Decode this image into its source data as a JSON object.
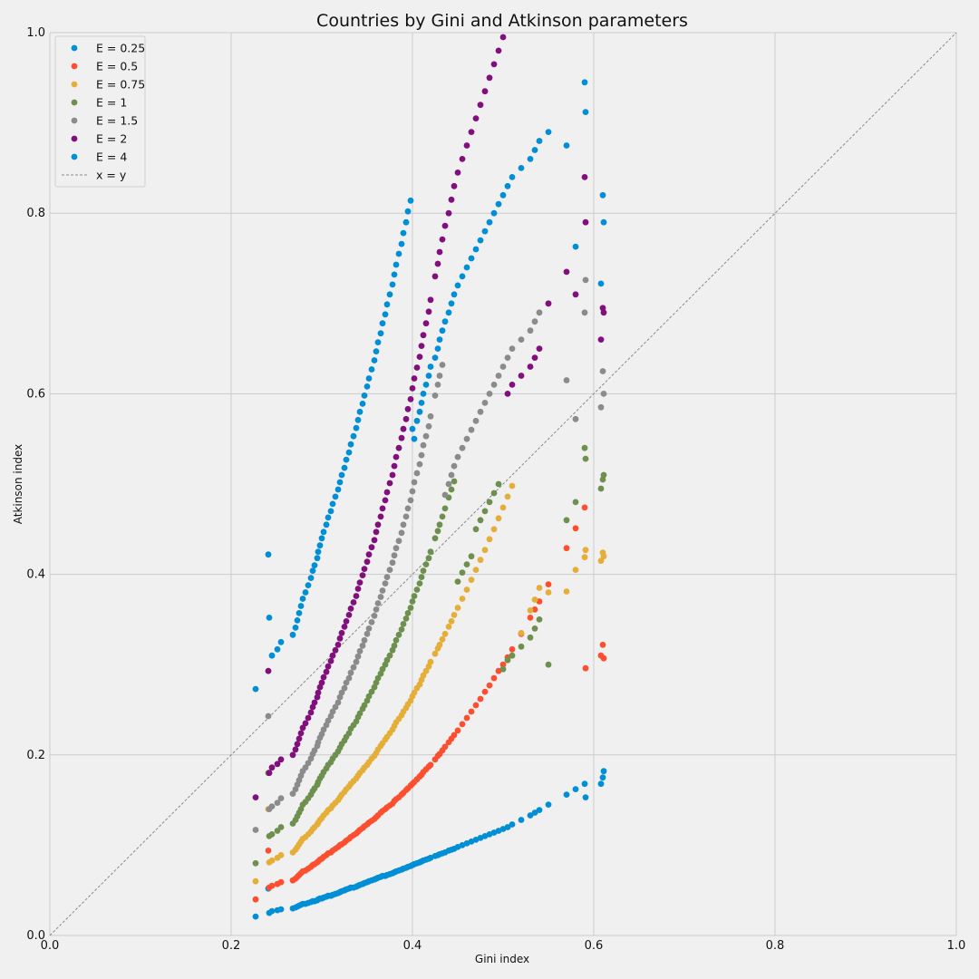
{
  "chart_data": {
    "type": "scatter",
    "title": "Countries by Gini and Atkinson parameters",
    "xlabel": "Gini index",
    "ylabel": "Atkinson index",
    "xlim": [
      0.0,
      1.0
    ],
    "ylim": [
      0.0,
      1.0
    ],
    "xticks": [
      "0.0",
      "0.2",
      "0.4",
      "0.6",
      "0.8",
      "1.0"
    ],
    "yticks": [
      "0.0",
      "0.2",
      "0.4",
      "0.6",
      "0.8",
      "1.0"
    ],
    "grid": true,
    "legend_position": "top-left",
    "reference_line": {
      "name": "x = y",
      "color": "#8a8a8a",
      "style": "dashed"
    },
    "series": [
      {
        "name": "E = 0.25",
        "color": "#008fd5",
        "exponent": 0.25
      },
      {
        "name": "E = 0.5",
        "color": "#fc4f30",
        "exponent": 0.5
      },
      {
        "name": "E = 0.75",
        "color": "#e5ae38",
        "exponent": 0.75
      },
      {
        "name": "E = 1",
        "color": "#6d904f",
        "exponent": 1
      },
      {
        "name": "E = 1.5",
        "color": "#8b8b8b",
        "exponent": 1.5
      },
      {
        "name": "E = 2",
        "color": "#810f7c",
        "exponent": 2
      },
      {
        "name": "E = 4",
        "color": "#008fd5",
        "exponent": 4
      }
    ],
    "gini_values": [
      0.227,
      0.242,
      0.241,
      0.245,
      0.251,
      0.255,
      0.268,
      0.271,
      0.273,
      0.275,
      0.277,
      0.279,
      0.282,
      0.285,
      0.288,
      0.29,
      0.292,
      0.295,
      0.296,
      0.298,
      0.3,
      0.302,
      0.305,
      0.307,
      0.31,
      0.312,
      0.315,
      0.318,
      0.32,
      0.322,
      0.325,
      0.327,
      0.33,
      0.332,
      0.335,
      0.338,
      0.34,
      0.342,
      0.345,
      0.347,
      0.35,
      0.352,
      0.355,
      0.358,
      0.36,
      0.362,
      0.365,
      0.367,
      0.37,
      0.372,
      0.375,
      0.378,
      0.38,
      0.382,
      0.385,
      0.388,
      0.39,
      0.393,
      0.395,
      0.398,
      0.4,
      0.402,
      0.405,
      0.408,
      0.41,
      0.412,
      0.415,
      0.418,
      0.42,
      0.425,
      0.428,
      0.43,
      0.433,
      0.436,
      0.44,
      0.443,
      0.446,
      0.45,
      0.455,
      0.46,
      0.465,
      0.47,
      0.475,
      0.48,
      0.485,
      0.49,
      0.495,
      0.5,
      0.505,
      0.51,
      0.52,
      0.53,
      0.535,
      0.54,
      0.55,
      0.57,
      0.58,
      0.59,
      0.61,
      0.608,
      0.611,
      0.591
    ],
    "atkinson_values": {
      "E = 0.25": [
        0.021,
        0.025,
        0.052,
        0.027,
        0.028,
        0.029,
        0.03,
        0.031,
        0.032,
        0.033,
        0.034,
        0.035,
        0.035,
        0.036,
        0.037,
        0.038,
        0.038,
        0.039,
        0.04,
        0.041,
        0.041,
        0.042,
        0.043,
        0.044,
        0.044,
        0.045,
        0.046,
        0.047,
        0.048,
        0.049,
        0.05,
        0.051,
        0.052,
        0.053,
        0.053,
        0.054,
        0.055,
        0.056,
        0.057,
        0.058,
        0.059,
        0.06,
        0.061,
        0.062,
        0.063,
        0.064,
        0.065,
        0.066,
        0.066,
        0.067,
        0.068,
        0.069,
        0.07,
        0.071,
        0.072,
        0.073,
        0.074,
        0.075,
        0.076,
        0.077,
        0.078,
        0.079,
        0.08,
        0.081,
        0.082,
        0.083,
        0.084,
        0.085,
        0.086,
        0.088,
        0.089,
        0.09,
        0.091,
        0.092,
        0.094,
        0.095,
        0.096,
        0.098,
        0.1,
        0.102,
        0.104,
        0.106,
        0.108,
        0.11,
        0.112,
        0.114,
        0.116,
        0.118,
        0.12,
        0.123,
        0.128,
        0.133,
        0.136,
        0.139,
        0.145,
        0.156,
        0.162,
        0.168,
        0.175,
        0.168,
        0.182,
        0.153
      ],
      "E = 0.5": [
        0.04,
        0.053,
        0.094,
        0.055,
        0.057,
        0.059,
        0.061,
        0.063,
        0.065,
        0.067,
        0.069,
        0.071,
        0.072,
        0.074,
        0.076,
        0.078,
        0.079,
        0.081,
        0.082,
        0.084,
        0.085,
        0.087,
        0.089,
        0.091,
        0.092,
        0.094,
        0.096,
        0.098,
        0.1,
        0.101,
        0.103,
        0.105,
        0.107,
        0.109,
        0.111,
        0.113,
        0.115,
        0.117,
        0.119,
        0.121,
        0.123,
        0.125,
        0.127,
        0.129,
        0.131,
        0.133,
        0.136,
        0.138,
        0.14,
        0.142,
        0.144,
        0.146,
        0.149,
        0.151,
        0.153,
        0.156,
        0.158,
        0.161,
        0.163,
        0.166,
        0.168,
        0.17,
        0.173,
        0.176,
        0.178,
        0.181,
        0.184,
        0.187,
        0.189,
        0.195,
        0.199,
        0.201,
        0.205,
        0.209,
        0.214,
        0.218,
        0.222,
        0.227,
        0.234,
        0.241,
        0.248,
        0.255,
        0.262,
        0.27,
        0.277,
        0.285,
        0.293,
        0.3,
        0.308,
        0.317,
        0.334,
        0.352,
        0.361,
        0.37,
        0.389,
        0.429,
        0.451,
        0.474,
        0.322,
        0.31,
        0.307,
        0.296
      ],
      "E = 0.75": [
        0.06,
        0.081,
        0.14,
        0.083,
        0.086,
        0.089,
        0.092,
        0.095,
        0.098,
        0.101,
        0.104,
        0.107,
        0.109,
        0.112,
        0.115,
        0.118,
        0.12,
        0.123,
        0.125,
        0.128,
        0.13,
        0.133,
        0.136,
        0.139,
        0.141,
        0.144,
        0.147,
        0.15,
        0.153,
        0.156,
        0.159,
        0.162,
        0.165,
        0.168,
        0.171,
        0.174,
        0.177,
        0.18,
        0.183,
        0.186,
        0.189,
        0.192,
        0.196,
        0.199,
        0.202,
        0.206,
        0.21,
        0.213,
        0.217,
        0.22,
        0.224,
        0.228,
        0.232,
        0.236,
        0.24,
        0.244,
        0.248,
        0.252,
        0.256,
        0.26,
        0.265,
        0.269,
        0.274,
        0.278,
        0.283,
        0.288,
        0.293,
        0.298,
        0.303,
        0.312,
        0.318,
        0.322,
        0.328,
        0.334,
        0.342,
        0.348,
        0.355,
        0.363,
        0.373,
        0.383,
        0.394,
        0.405,
        0.416,
        0.427,
        0.439,
        0.45,
        0.462,
        0.474,
        0.486,
        0.498,
        0.335,
        0.36,
        0.372,
        0.385,
        0.38,
        0.381,
        0.405,
        0.419,
        0.424,
        0.415,
        0.42,
        0.427
      ],
      "E = 1": [
        0.08,
        0.11,
        0.18,
        0.112,
        0.116,
        0.12,
        0.124,
        0.128,
        0.132,
        0.136,
        0.14,
        0.145,
        0.148,
        0.152,
        0.156,
        0.16,
        0.163,
        0.167,
        0.17,
        0.174,
        0.177,
        0.181,
        0.185,
        0.189,
        0.192,
        0.196,
        0.2,
        0.204,
        0.208,
        0.212,
        0.216,
        0.22,
        0.224,
        0.229,
        0.233,
        0.237,
        0.242,
        0.246,
        0.251,
        0.255,
        0.26,
        0.265,
        0.27,
        0.275,
        0.28,
        0.285,
        0.29,
        0.295,
        0.3,
        0.305,
        0.31,
        0.316,
        0.321,
        0.327,
        0.333,
        0.339,
        0.345,
        0.351,
        0.357,
        0.363,
        0.37,
        0.376,
        0.383,
        0.39,
        0.397,
        0.404,
        0.411,
        0.418,
        0.425,
        0.44,
        0.448,
        0.455,
        0.464,
        0.473,
        0.485,
        0.494,
        0.503,
        0.392,
        0.402,
        0.411,
        0.42,
        0.45,
        0.46,
        0.47,
        0.48,
        0.49,
        0.5,
        0.295,
        0.305,
        0.31,
        0.32,
        0.33,
        0.34,
        0.35,
        0.3,
        0.46,
        0.48,
        0.54,
        0.505,
        0.495,
        0.51,
        0.528
      ],
      "E = 1.5": [
        0.117,
        0.14,
        0.243,
        0.143,
        0.147,
        0.152,
        0.157,
        0.162,
        0.167,
        0.172,
        0.177,
        0.182,
        0.186,
        0.191,
        0.196,
        0.201,
        0.205,
        0.21,
        0.214,
        0.219,
        0.223,
        0.228,
        0.233,
        0.238,
        0.243,
        0.248,
        0.253,
        0.258,
        0.264,
        0.269,
        0.274,
        0.28,
        0.285,
        0.291,
        0.297,
        0.303,
        0.309,
        0.315,
        0.321,
        0.327,
        0.334,
        0.34,
        0.347,
        0.354,
        0.361,
        0.368,
        0.375,
        0.382,
        0.39,
        0.397,
        0.405,
        0.413,
        0.421,
        0.429,
        0.437,
        0.446,
        0.455,
        0.464,
        0.473,
        0.482,
        0.492,
        0.502,
        0.512,
        0.522,
        0.532,
        0.543,
        0.553,
        0.564,
        0.575,
        0.598,
        0.61,
        0.62,
        0.632,
        0.488,
        0.5,
        0.51,
        0.52,
        0.53,
        0.54,
        0.55,
        0.56,
        0.57,
        0.58,
        0.59,
        0.6,
        0.61,
        0.62,
        0.63,
        0.64,
        0.65,
        0.66,
        0.67,
        0.68,
        0.69,
        0.7,
        0.615,
        0.572,
        0.69,
        0.625,
        0.585,
        0.6,
        0.726
      ],
      "E = 2": [
        0.153,
        0.18,
        0.293,
        0.186,
        0.19,
        0.195,
        0.2,
        0.206,
        0.212,
        0.218,
        0.224,
        0.23,
        0.235,
        0.241,
        0.247,
        0.253,
        0.258,
        0.264,
        0.269,
        0.275,
        0.28,
        0.286,
        0.292,
        0.298,
        0.304,
        0.31,
        0.316,
        0.322,
        0.329,
        0.335,
        0.342,
        0.348,
        0.355,
        0.362,
        0.369,
        0.376,
        0.384,
        0.391,
        0.399,
        0.406,
        0.414,
        0.422,
        0.43,
        0.438,
        0.447,
        0.455,
        0.464,
        0.473,
        0.482,
        0.491,
        0.501,
        0.51,
        0.52,
        0.53,
        0.54,
        0.551,
        0.561,
        0.572,
        0.583,
        0.594,
        0.606,
        0.617,
        0.629,
        0.641,
        0.653,
        0.665,
        0.678,
        0.691,
        0.704,
        0.73,
        0.744,
        0.757,
        0.771,
        0.786,
        0.8,
        0.815,
        0.83,
        0.845,
        0.86,
        0.875,
        0.89,
        0.905,
        0.92,
        0.935,
        0.95,
        0.965,
        0.98,
        0.995,
        0.6,
        0.61,
        0.62,
        0.63,
        0.64,
        0.65,
        0.7,
        0.735,
        0.71,
        0.84,
        0.695,
        0.66,
        0.69,
        0.79
      ],
      "E = 4": [
        0.273,
        0.352,
        0.422,
        0.31,
        0.317,
        0.325,
        0.333,
        0.341,
        0.349,
        0.357,
        0.365,
        0.373,
        0.38,
        0.388,
        0.396,
        0.404,
        0.41,
        0.418,
        0.425,
        0.432,
        0.44,
        0.447,
        0.455,
        0.463,
        0.47,
        0.478,
        0.486,
        0.494,
        0.502,
        0.51,
        0.518,
        0.527,
        0.535,
        0.544,
        0.553,
        0.562,
        0.571,
        0.58,
        0.589,
        0.598,
        0.608,
        0.617,
        0.627,
        0.637,
        0.647,
        0.657,
        0.667,
        0.678,
        0.688,
        0.699,
        0.71,
        0.721,
        0.732,
        0.743,
        0.755,
        0.766,
        0.778,
        0.79,
        0.802,
        0.814,
        0.561,
        0.55,
        0.57,
        0.58,
        0.59,
        0.6,
        0.61,
        0.62,
        0.63,
        0.64,
        0.65,
        0.66,
        0.67,
        0.68,
        0.69,
        0.7,
        0.71,
        0.72,
        0.73,
        0.74,
        0.75,
        0.76,
        0.77,
        0.78,
        0.79,
        0.8,
        0.81,
        0.82,
        0.83,
        0.84,
        0.85,
        0.86,
        0.87,
        0.88,
        0.89,
        0.875,
        0.763,
        0.945,
        0.82,
        0.722,
        0.79,
        0.912
      ]
    }
  }
}
